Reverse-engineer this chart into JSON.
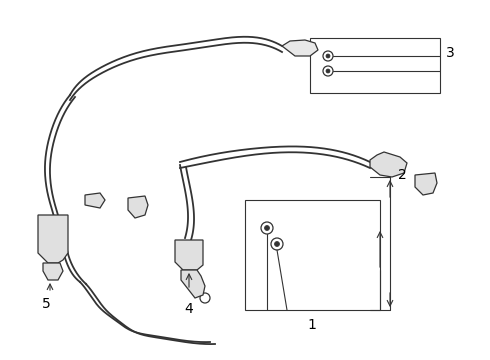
{
  "background_color": "#ffffff",
  "line_color": "#333333",
  "label_color": "#000000",
  "lw_main": 1.3,
  "lw_thin": 0.8,
  "lw_part": 0.9,
  "figsize": [
    4.9,
    3.6
  ],
  "dpi": 100,
  "label_fontsize": 10,
  "xlim": [
    0,
    490
  ],
  "ylim": [
    0,
    360
  ]
}
